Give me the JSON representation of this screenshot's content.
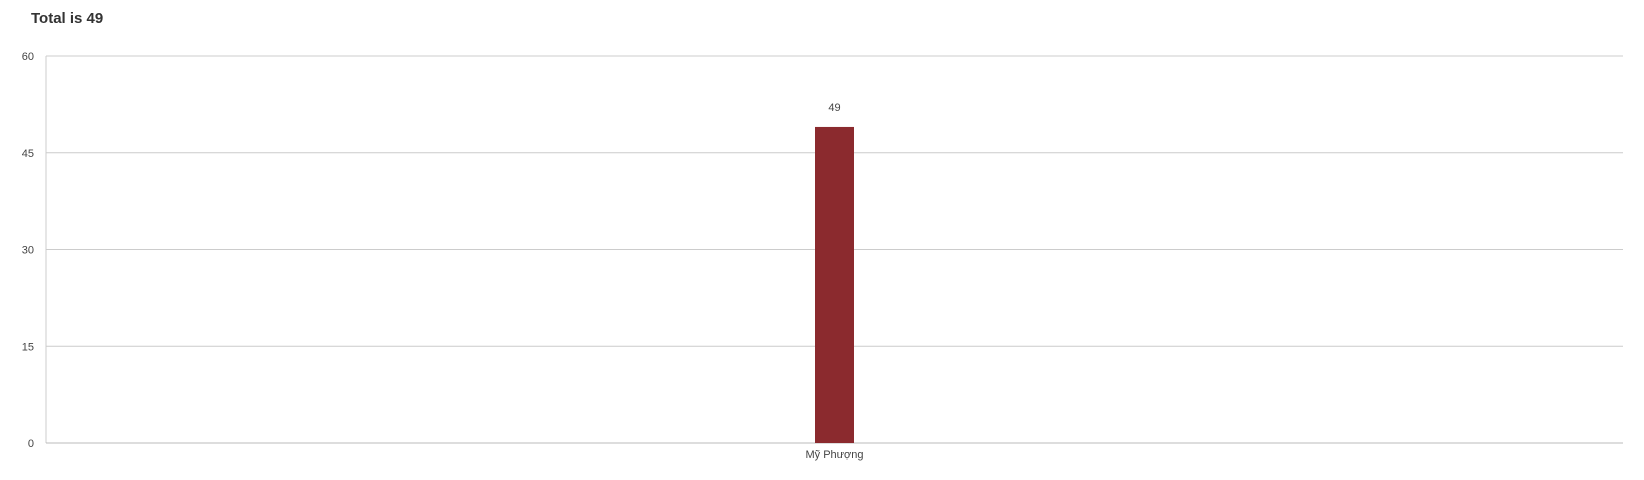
{
  "chart_data": {
    "type": "bar",
    "title": "Total is 49",
    "categories": [
      "Mỹ Phượng"
    ],
    "series": [
      {
        "values": [
          49
        ]
      }
    ],
    "ylim": [
      0,
      60
    ],
    "yticks": [
      "0",
      "15",
      "30",
      "45",
      "60"
    ],
    "ytick_values": [
      0,
      15,
      30,
      45,
      60
    ],
    "data_labels": [
      "49"
    ],
    "grid": true,
    "bar_color": "#8b2a2e",
    "grid_color": "#cccccc"
  }
}
